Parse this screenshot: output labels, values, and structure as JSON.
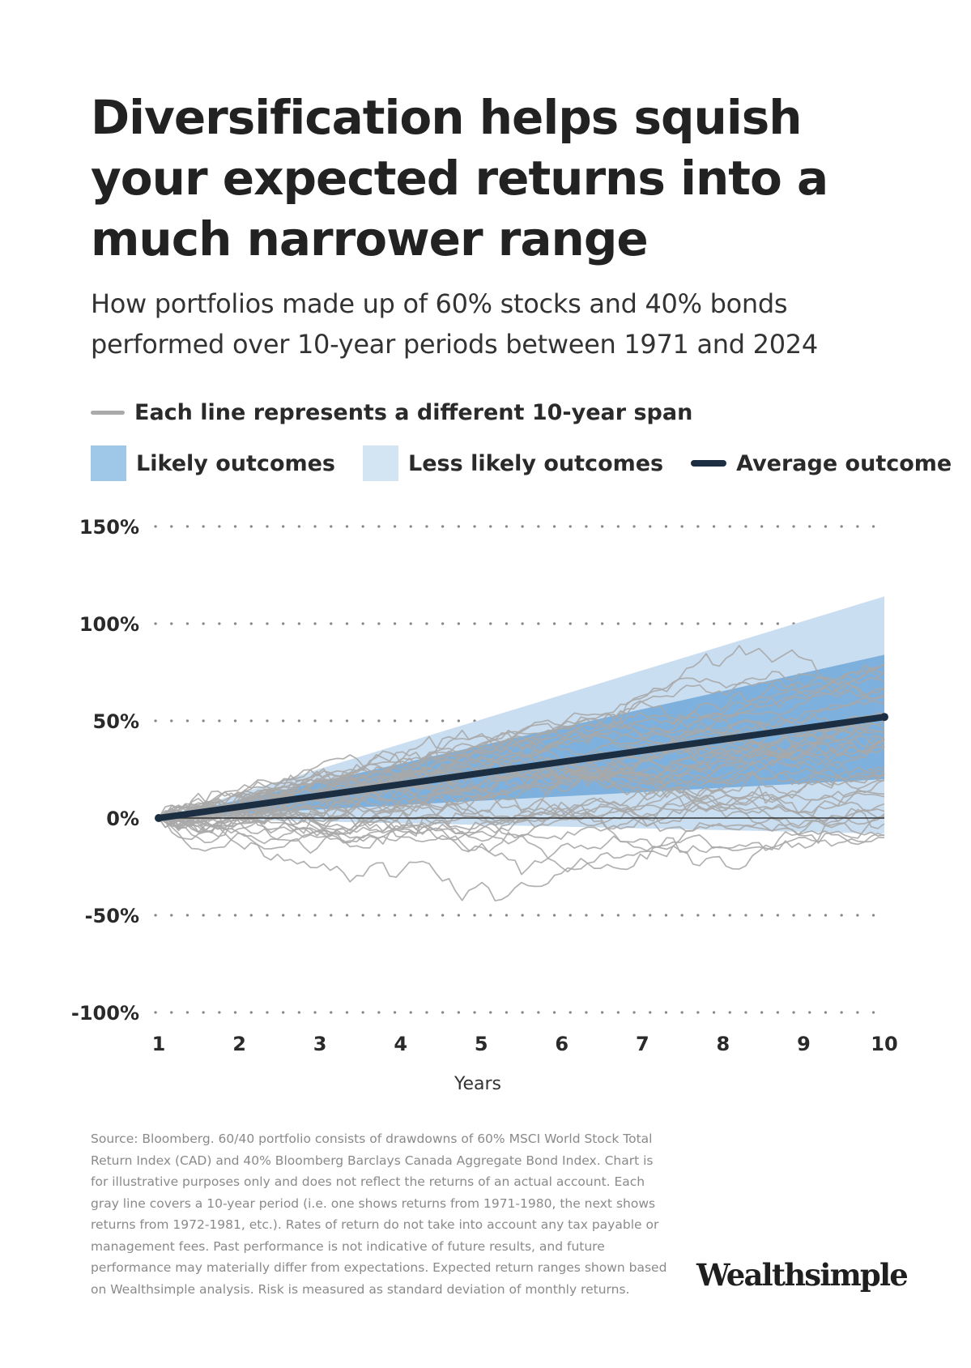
{
  "header": {
    "title": "Diversification helps squish your expected returns into a much narrower range",
    "subtitle": "How portfolios made up of 60% stocks and 40% bonds performed over 10-year periods between 1971 and 2024"
  },
  "legend": {
    "lines_label": "Each line represents a different 10-year span",
    "likely_label": "Likely outcomes",
    "less_likely_label": "Less likely outcomes",
    "average_label": "Average outcome"
  },
  "colors": {
    "gray_line": "#a8a8a8",
    "likely": "#7db0dc",
    "less_likely": "#c9def1",
    "average": "#1c2f42",
    "zero_line": "#333333",
    "grid_dots": "#888888"
  },
  "chart_data": {
    "type": "line",
    "xlabel": "Years",
    "x_ticks": [
      "1",
      "2",
      "3",
      "4",
      "5",
      "6",
      "7",
      "8",
      "9",
      "10"
    ],
    "y_ticks": [
      "150%",
      "100%",
      "50%",
      "0%",
      "-50%",
      "-100%"
    ],
    "xlim": [
      1,
      10
    ],
    "ylim": [
      -100,
      150
    ],
    "grid": "dotted horizontal",
    "series": [
      {
        "name": "Average outcome",
        "x": [
          1,
          10
        ],
        "y": [
          0,
          52
        ]
      }
    ],
    "bands": [
      {
        "name": "Less likely outcomes",
        "x": [
          1,
          10
        ],
        "upper": [
          0,
          114
        ],
        "lower": [
          0,
          -8
        ]
      },
      {
        "name": "Likely outcomes",
        "x": [
          1,
          10
        ],
        "upper": [
          0,
          84
        ],
        "lower": [
          0,
          20
        ]
      }
    ],
    "gray_lines_note": "Each line represents a different 10-year span",
    "gray_lines_count": 45
  },
  "footnote": "Source: Bloomberg. 60/40 portfolio consists of drawdowns of  60% MSCI World Stock Total Return Index (CAD) and 40% Bloomberg Barclays Canada Aggregate Bond Index. Chart is for illustrative purposes only and does not reflect the returns of an actual account. Each gray line covers a 10-year period (i.e. one shows returns from 1971-1980, the next shows returns from 1972-1981, etc.). Rates of return do not take into account any tax payable or management fees. Past performance is not indicative of future results, and future performance may materially differ from expectations. Expected return ranges shown based on Wealthsimple analysis. Risk is measured as standard deviation of monthly returns.",
  "brand": {
    "logo_text": "Wealthsimple"
  }
}
